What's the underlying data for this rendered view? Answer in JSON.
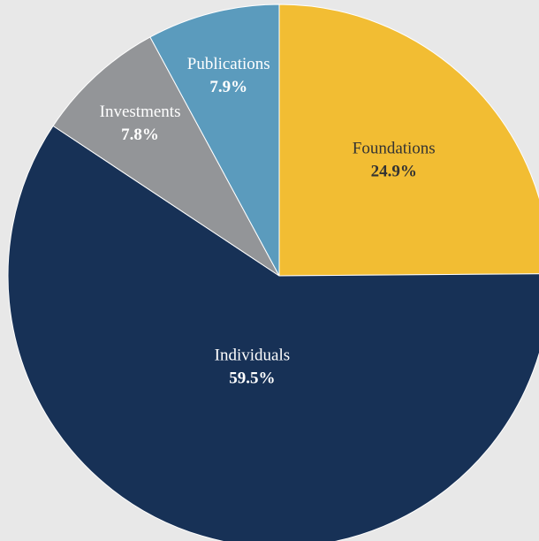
{
  "chart_data": {
    "type": "pie",
    "categories": [
      "Foundations",
      "Individuals",
      "Investments",
      "Publications"
    ],
    "values": [
      24.9,
      59.5,
      7.8,
      7.9
    ],
    "value_labels": [
      "24.9%",
      "59.5%",
      "7.8%",
      "7.9%"
    ],
    "colors": [
      "#f2bd33",
      "#173156",
      "#939598",
      "#5b9bbd"
    ]
  }
}
